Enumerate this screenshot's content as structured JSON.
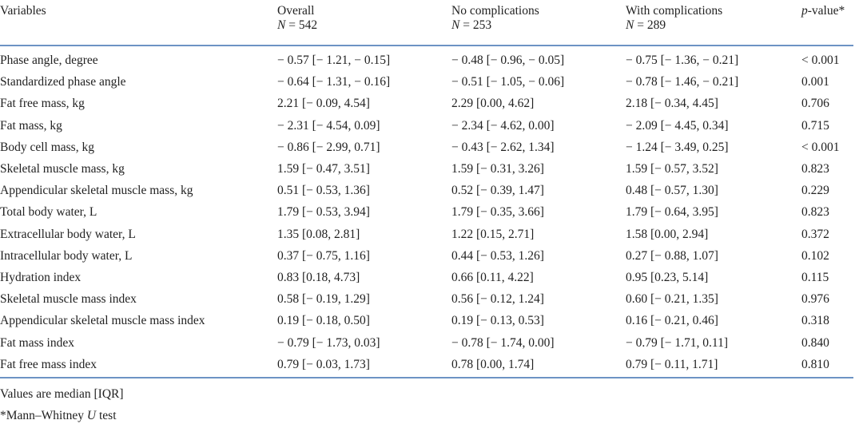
{
  "table": {
    "header": [
      {
        "label": "Variables"
      },
      {
        "label": "Overall",
        "n_symbol": "N",
        "n_value": " = 542"
      },
      {
        "label": "No complications",
        "n_symbol": "N",
        "n_value": " = 253"
      },
      {
        "label": "With complications",
        "n_symbol": "N",
        "n_value": " = 289"
      },
      {
        "symbol": "p",
        "label": "-value*"
      }
    ],
    "rows": [
      [
        "Phase angle, degree",
        "− 0.57 [− 1.21, − 0.15]",
        "− 0.48 [− 0.96, − 0.05]",
        "− 0.75 [− 1.36, − 0.21]",
        "< 0.001"
      ],
      [
        "Standardized phase angle",
        "− 0.64 [− 1.31, − 0.16]",
        "− 0.51 [− 1.05, − 0.06]",
        "− 0.78 [− 1.46, − 0.21]",
        "0.001"
      ],
      [
        "Fat free mass, kg",
        "2.21 [− 0.09, 4.54]",
        "2.29 [0.00, 4.62]",
        "2.18 [− 0.34, 4.45]",
        "0.706"
      ],
      [
        "Fat mass, kg",
        "− 2.31 [− 4.54, 0.09]",
        "− 2.34 [− 4.62, 0.00]",
        "− 2.09 [− 4.45, 0.34]",
        "0.715"
      ],
      [
        "Body cell mass, kg",
        "− 0.86 [− 2.99, 0.71]",
        "− 0.43 [− 2.62, 1.34]",
        "− 1.24 [− 3.49, 0.25]",
        "< 0.001"
      ],
      [
        "Skeletal muscle mass, kg",
        "1.59 [− 0.47, 3.51]",
        "1.59 [− 0.31, 3.26]",
        "1.59 [− 0.57, 3.52]",
        "0.823"
      ],
      [
        "Appendicular skeletal muscle mass, kg",
        "0.51 [− 0.53, 1.36]",
        "0.52 [− 0.39, 1.47]",
        "0.48 [− 0.57, 1.30]",
        "0.229"
      ],
      [
        "Total body water, L",
        "1.79 [− 0.53, 3.94]",
        "1.79 [− 0.35, 3.66]",
        "1.79 [− 0.64, 3.95]",
        "0.823"
      ],
      [
        "Extracellular body water, L",
        "1.35 [0.08, 2.81]",
        "1.22 [0.15, 2.71]",
        "1.58 [0.00, 2.94]",
        "0.372"
      ],
      [
        "Intracellular body water, L",
        "0.37 [− 0.75, 1.16]",
        "0.44 [− 0.53, 1.26]",
        "0.27 [− 0.88, 1.07]",
        "0.102"
      ],
      [
        "Hydration index",
        "0.83 [0.18, 4.73]",
        "0.66 [0.11, 4.22]",
        "0.95 [0.23, 5.14]",
        "0.115"
      ],
      [
        "Skeletal muscle mass index",
        "0.58 [− 0.19, 1.29]",
        "0.56 [− 0.12, 1.24]",
        "0.60 [− 0.21, 1.35]",
        "0.976"
      ],
      [
        "Appendicular skeletal muscle mass index",
        "0.19 [− 0.18, 0.50]",
        "0.19 [− 0.13, 0.53]",
        "0.16 [− 0.21, 0.46]",
        "0.318"
      ],
      [
        "Fat mass index",
        "− 0.79 [− 1.73, 0.03]",
        "− 0.78 [− 1.74, 0.00]",
        "− 0.79 [− 1.71, 0.11]",
        "0.840"
      ],
      [
        "Fat free mass index",
        "0.79 [− 0.03, 1.73]",
        "0.78 [0.00, 1.74]",
        "0.79 [− 0.11, 1.71]",
        "0.810"
      ]
    ]
  },
  "footnotes": [
    {
      "text": "Values are median [IQR]"
    },
    {
      "prefix": "*Mann–Whitney ",
      "symbol": "U",
      "suffix": " test"
    }
  ]
}
